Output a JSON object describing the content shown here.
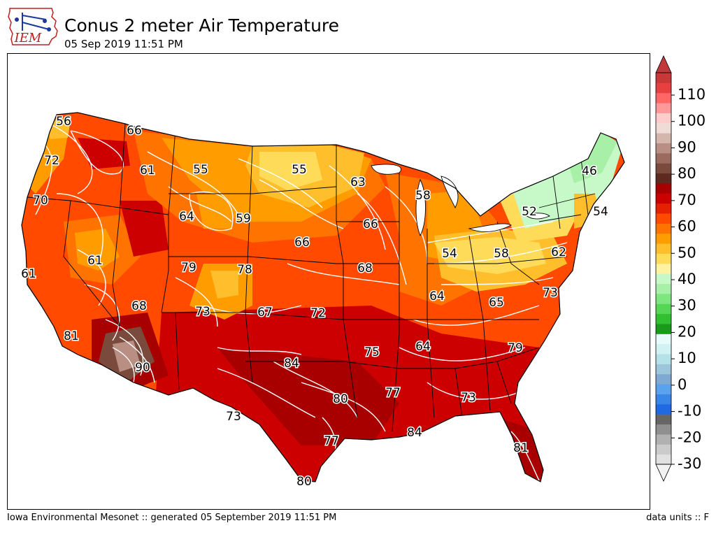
{
  "header": {
    "title": "Conus 2 meter Air Temperature",
    "subtitle": "05 Sep 2019 11:51 PM",
    "logo_text": "IEM"
  },
  "footer": {
    "left": "Iowa Environmental Mesonet :: generated 05 September 2019 11:51 PM",
    "right": "data units :: F"
  },
  "colorbar": {
    "tick_labels": [
      "110",
      "100",
      "90",
      "80",
      "70",
      "60",
      "50",
      "40",
      "30",
      "20",
      "10",
      "0",
      "-10",
      "-20",
      "-30"
    ],
    "band_colors": [
      "#e1e1e1",
      "#cbcbcb",
      "#b1b1b1",
      "#8f8f8f",
      "#666666",
      "#2069e0",
      "#3a85e8",
      "#5aa2ee",
      "#7fa8d2",
      "#9ec6db",
      "#b4e2e8",
      "#d0f2f2",
      "#e8fbfb",
      "#1a9a1a",
      "#31c031",
      "#55d655",
      "#7ee67e",
      "#a8f0a8",
      "#c7f8c7",
      "#fff2a0",
      "#ffdb5a",
      "#ffbf2c",
      "#ff9c00",
      "#ff7300",
      "#ff4a00",
      "#e62000",
      "#cc0000",
      "#a80000",
      "#5c2a1e",
      "#7a4a3c",
      "#9b6b5d",
      "#b88f82",
      "#d4b6ac",
      "#f0dcd6",
      "#ffcccc",
      "#ff9999",
      "#ff6666",
      "#e84040",
      "#c93838"
    ],
    "extend_top_color": "#c0393b",
    "extend_bottom_color": "#f2f2f2"
  },
  "map": {
    "contour_labels": [
      "56",
      "66",
      "72",
      "61",
      "55",
      "55",
      "63",
      "70",
      "64",
      "59",
      "58",
      "66",
      "46",
      "52",
      "54",
      "61",
      "66",
      "54",
      "58",
      "62",
      "79",
      "78",
      "68",
      "61",
      "68",
      "67",
      "72",
      "64",
      "65",
      "73",
      "73",
      "84",
      "75",
      "64",
      "79",
      "81",
      "90",
      "80",
      "77",
      "73",
      "73",
      "84",
      "77",
      "81",
      "80"
    ]
  }
}
